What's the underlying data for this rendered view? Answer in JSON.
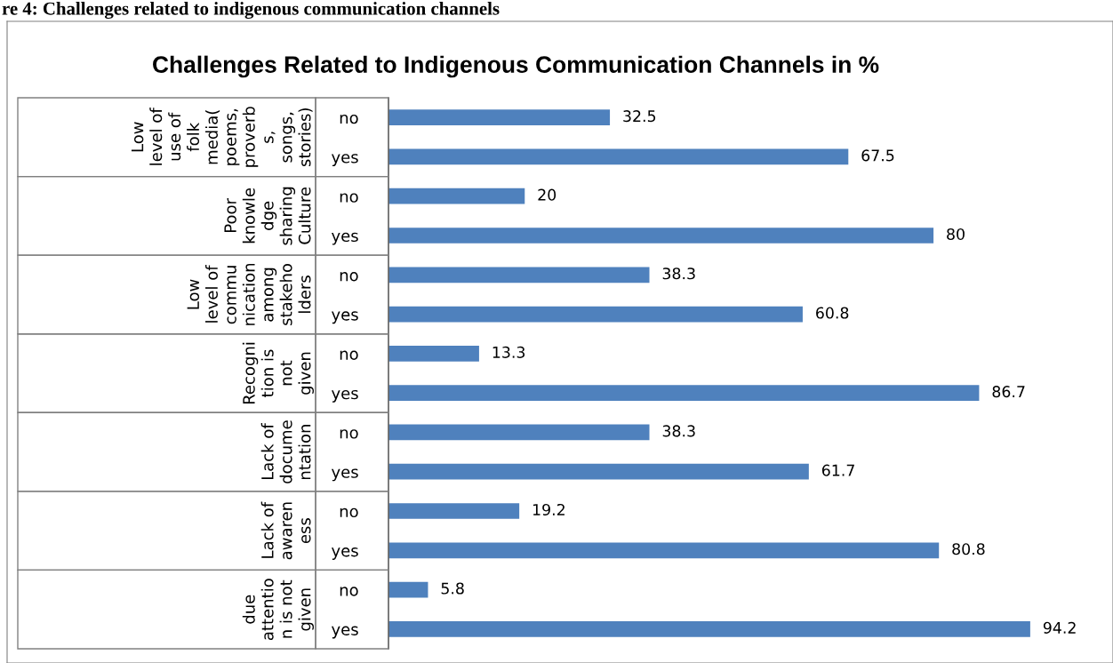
{
  "chart_data": {
    "type": "bar",
    "orientation": "horizontal",
    "title": "Challenges Related to Indigenous Communication Channels in %",
    "categories": [
      "no",
      "yes",
      "no",
      "yes",
      "no",
      "yes",
      "no",
      "yes",
      "no",
      "yes",
      "no",
      "yes",
      "no",
      "yes"
    ],
    "values": [
      32.5,
      67.5,
      20,
      80,
      38.3,
      60.8,
      13.3,
      86.7,
      38.3,
      61.7,
      19.2,
      80.8,
      5.8,
      94.2
    ],
    "color": "#4f81bd",
    "tick_labels": "y",
    "data_labels": true,
    "grid": false,
    "legend": false,
    "annotations": [
      "re 4: Challenges related to indigenous communication channels",
      "Low\nlevel of\nuse of\nfolk\nmedia(\npoems,\nproverb\ns,\nsongs,\nstories)",
      "Poor\nknowle\ndge\nsharing\nCulture",
      "Low\nlevel of\ncommu\nnication\namong\nstakeho\nlders",
      "Recogni\ntion is\nnot\ngiven",
      "Lack of\ndocume\nntation",
      "Lack of\nawaren\ness",
      "due\nattentio\nn is not\ngiven"
    ]
  }
}
